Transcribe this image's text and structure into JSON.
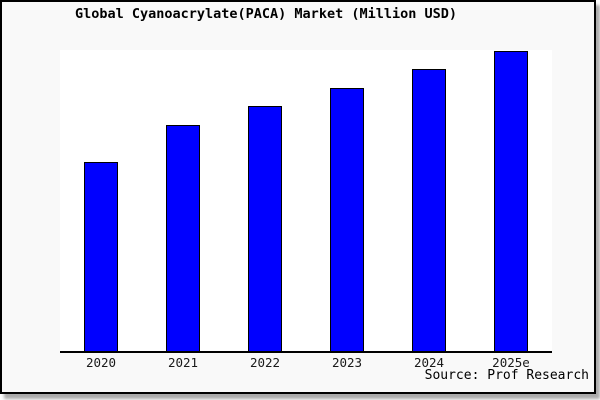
{
  "chart_data": {
    "type": "bar",
    "title": "Global Cyanoacrylate(PACA) Market (Million USD)",
    "categories": [
      "2020",
      "2021",
      "2022",
      "2023",
      "2024",
      "2025e"
    ],
    "values": [
      63,
      75.3,
      81.7,
      87.7,
      94,
      100
    ],
    "values_note": "No y-axis scale is drawn; values are bar heights as percent of the tallest (2025e) bar",
    "xlabel": "",
    "ylabel": "",
    "ylim": [
      0,
      100
    ],
    "y_axis_labels_visible": false,
    "grid": false,
    "legend": false
  },
  "source_note": "Source: Prof Research",
  "colors": {
    "bar_fill": "#0000ff",
    "bar_border": "#000000",
    "frame_border": "#000000",
    "background": "#f9f9f9",
    "plot_background": "#ffffff",
    "shadow": "#aaaaaa",
    "text": "#000000"
  }
}
